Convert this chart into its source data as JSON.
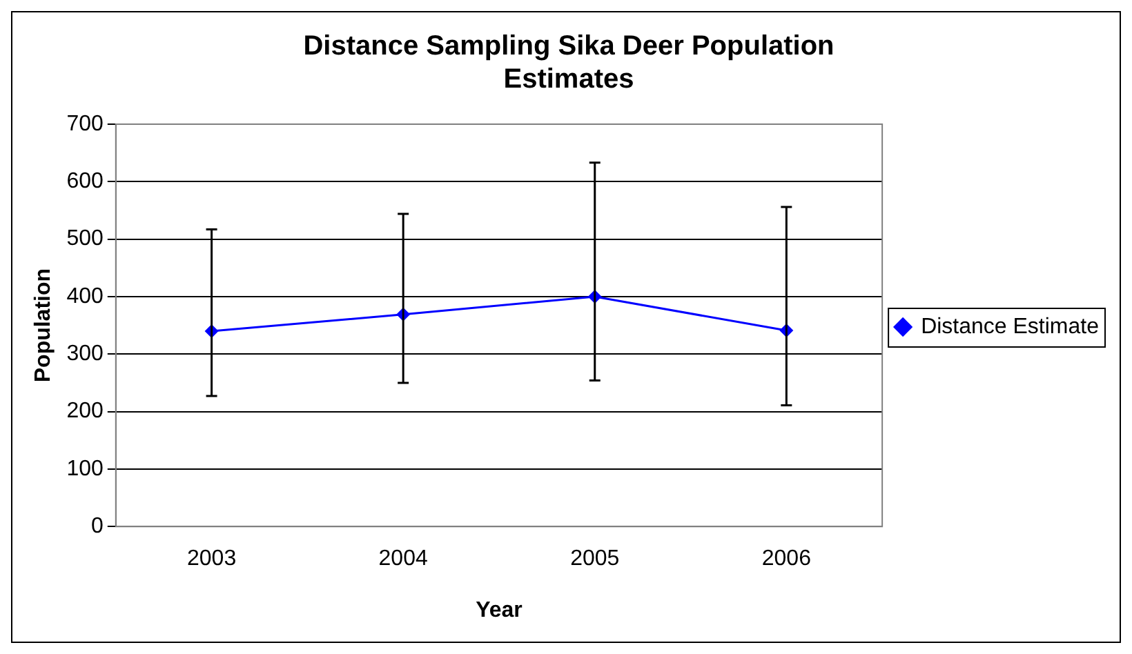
{
  "chart_data": {
    "type": "line",
    "title": "Distance Sampling Sika Deer Population Estimates",
    "xlabel": "Year",
    "ylabel": "Population",
    "categories": [
      "2003",
      "2004",
      "2005",
      "2006"
    ],
    "series": [
      {
        "name": "Distance Estimate",
        "color": "#0000ff",
        "values": [
          340,
          369,
          400,
          341
        ],
        "errors": [
          [
            227,
            517
          ],
          [
            250,
            544
          ],
          [
            254,
            633
          ],
          [
            211,
            556
          ]
        ]
      }
    ],
    "ylim": [
      0,
      700
    ],
    "yticks": [
      0,
      100,
      200,
      300,
      400,
      500,
      600,
      700
    ],
    "grid": "y",
    "legend": "right",
    "marker": "diamond",
    "line_style": "solid"
  }
}
